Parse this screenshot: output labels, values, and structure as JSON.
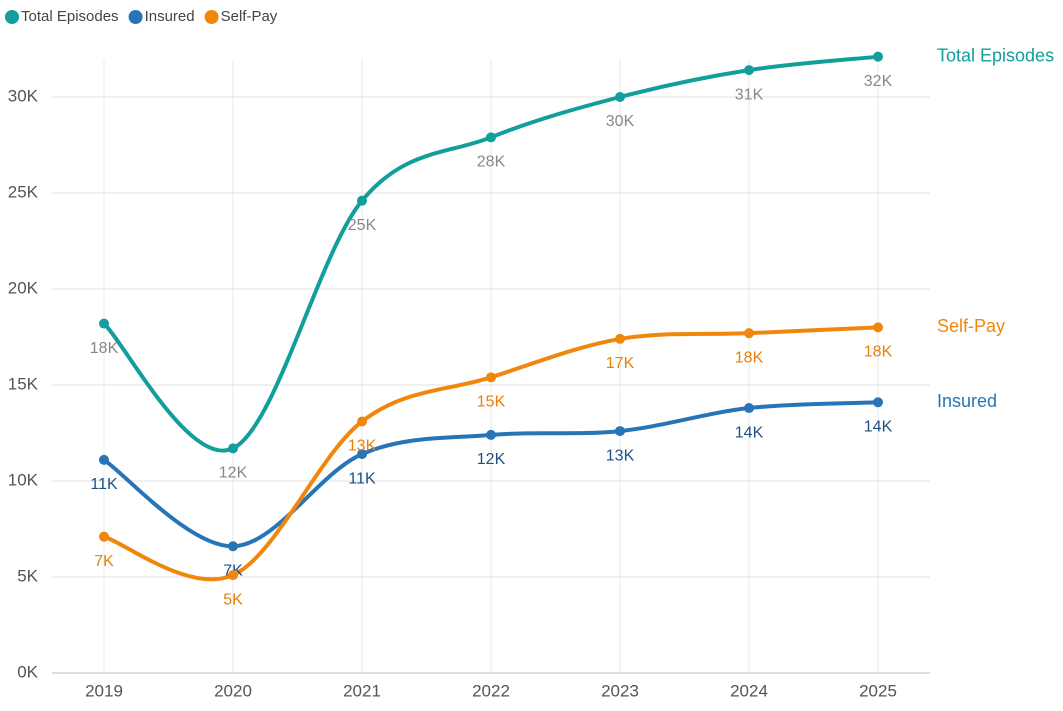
{
  "chart_data": {
    "type": "line",
    "categories": [
      "2019",
      "2020",
      "2021",
      "2022",
      "2023",
      "2024",
      "2025"
    ],
    "series": [
      {
        "name": "Total Episodes",
        "color": "#129e9a",
        "label_color": "#888888",
        "values": [
          18200,
          11700,
          24600,
          27900,
          30000,
          31400,
          32100
        ],
        "value_labels": [
          "18K",
          "12K",
          "25K",
          "28K",
          "30K",
          "31K",
          "32K"
        ]
      },
      {
        "name": "Insured",
        "color": "#2775b6",
        "label_color": "#1e4f86",
        "values": [
          11100,
          6600,
          11400,
          12400,
          12600,
          13800,
          14100
        ],
        "value_labels": [
          "11K",
          "7K",
          "11K",
          "12K",
          "13K",
          "14K",
          "14K"
        ]
      },
      {
        "name": "Self-Pay",
        "color": "#f0870c",
        "label_color": "#e8800a",
        "values": [
          7100,
          5100,
          13100,
          15400,
          17400,
          17700,
          18000
        ],
        "value_labels": [
          "7K",
          "5K",
          "13K",
          "15K",
          "17K",
          "18K",
          "18K"
        ]
      }
    ],
    "ylim": [
      0,
      33000
    ],
    "yticks": [
      {
        "value": 0,
        "label": "0K"
      },
      {
        "value": 5000,
        "label": "5K"
      },
      {
        "value": 10000,
        "label": "10K"
      },
      {
        "value": 15000,
        "label": "15K"
      },
      {
        "value": 20000,
        "label": "20K"
      },
      {
        "value": 25000,
        "label": "25K"
      },
      {
        "value": 30000,
        "label": "30K"
      }
    ],
    "grid": true,
    "legend": "top-left",
    "smooth": true
  }
}
